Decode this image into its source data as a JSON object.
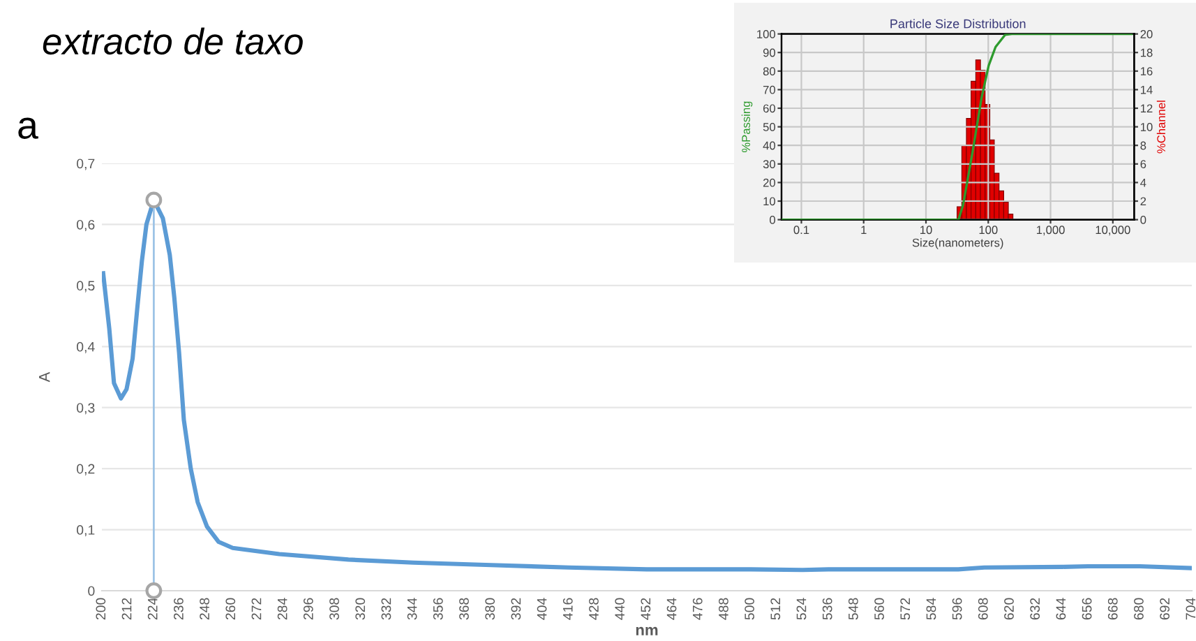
{
  "chart_data": [
    {
      "type": "line",
      "title": "extracto de taxo",
      "subtitle": "a",
      "xlabel": "nm",
      "ylabel": "A",
      "x": [
        200.6,
        203.4,
        205.6,
        208.8,
        211.4,
        214.2,
        216.3,
        218.5,
        220.6,
        224,
        228.2,
        231.4,
        233.5,
        235.7,
        237.9,
        241.1,
        244.3,
        248.6,
        254,
        260.5,
        282,
        314,
        344,
        380,
        416,
        452,
        500,
        524,
        536,
        596,
        608,
        644,
        656,
        680,
        704
      ],
      "series": [
        {
          "type": "scatter",
          "x": [
            224,
            224
          ],
          "values": [
            0,
            0.64
          ],
          "color": "#a6a6a6",
          "marker": "circle"
        },
        {
          "color": "#5b9bd5",
          "values": [
            0.52,
            0.43,
            0.34,
            0.315,
            0.33,
            0.38,
            0.46,
            0.54,
            0.6,
            0.64,
            0.61,
            0.55,
            0.48,
            0.39,
            0.28,
            0.2,
            0.145,
            0.105,
            0.08,
            0.07,
            0.06,
            0.051,
            0.046,
            0.042,
            0.038,
            0.035,
            0.035,
            0.034,
            0.035,
            0.035,
            0.038,
            0.039,
            0.04,
            0.04,
            0.037
          ]
        }
      ],
      "xlim": [
        200,
        704
      ],
      "xticks": [
        200,
        212,
        224,
        236,
        248,
        260,
        272,
        284,
        296,
        308,
        320,
        332,
        344,
        356,
        368,
        380,
        392,
        404,
        416,
        428,
        440,
        452,
        464,
        476,
        488,
        500,
        512,
        524,
        536,
        548,
        560,
        572,
        584,
        596,
        608,
        620,
        632,
        644,
        656,
        668,
        680,
        692,
        704
      ],
      "ylim": [
        0,
        0.7
      ],
      "yticks": [
        0,
        {
          "value": 0.1,
          "label": "0,1"
        },
        {
          "value": 0.2,
          "label": "0,2"
        },
        {
          "value": 0.3,
          "label": "0,3"
        },
        {
          "value": 0.4,
          "label": "0,4"
        },
        {
          "value": 0.5,
          "label": "0,5"
        },
        {
          "value": 0.6,
          "label": "0,6"
        },
        {
          "value": 0.7,
          "label": "0,7"
        }
      ],
      "ref_lines": [
        {
          "axis": "x",
          "value": 224,
          "color": "#9dc3e6"
        }
      ],
      "grid": "y"
    },
    {
      "type": "line",
      "title": "Particle Size Distribution",
      "xlabel": "Size(nanometers)",
      "ylabel": "%Passing",
      "y2label": "%Channel",
      "log": "x",
      "series": [
        {
          "type": "line",
          "color": "#2e9b2e",
          "x": [
            0.05,
            33.3,
            39.5,
            55.7,
            78.5,
            101.6,
            131,
            186,
            239,
            20000
          ],
          "values": [
            0,
            0,
            8,
            36,
            66,
            83,
            93,
            99.5,
            100,
            100
          ]
        },
        {
          "type": "histogram",
          "axis": "y2",
          "color": "#e00000",
          "bins": [
            31.6,
            37.6,
            44.6,
            53,
            63,
            75,
            89,
            106,
            125,
            149,
            177,
            210,
            249
          ],
          "values": [
            1.4,
            8,
            10.9,
            14.9,
            17.2,
            16.1,
            12.4,
            8.6,
            5,
            3.1,
            1.9,
            0.6
          ]
        }
      ],
      "xlim": [
        0.048,
        22000
      ],
      "xticks": [
        0.1,
        1,
        10,
        100,
        {
          "value": 1000,
          "label": "1,000"
        },
        {
          "value": 10000,
          "label": "10,000"
        }
      ],
      "ylim": [
        0,
        100
      ],
      "yticks": [
        0,
        10,
        20,
        30,
        40,
        50,
        60,
        70,
        80,
        90,
        100
      ],
      "y2lim": [
        0,
        20
      ],
      "y2ticks": [
        0,
        2,
        4,
        6,
        8,
        10,
        12,
        14,
        16,
        18,
        20
      ],
      "grid": true
    }
  ]
}
